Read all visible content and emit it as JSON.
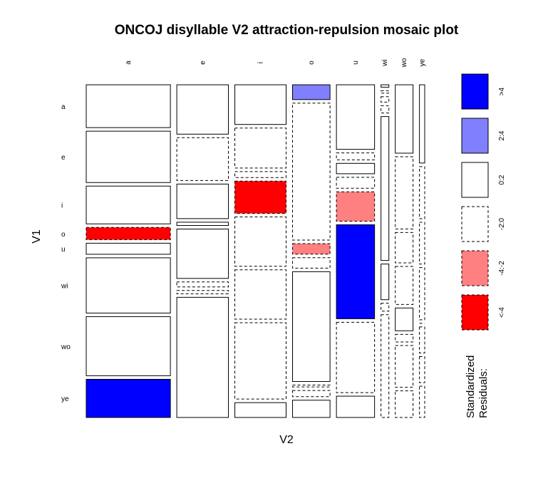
{
  "chart_data": {
    "type": "mosaic",
    "title": "ONCOJ disyllable V2 attraction-repulsion mosaic plot",
    "xlabel": "V2",
    "ylabel": "V1",
    "x_levels": [
      "a",
      "e",
      "i",
      "o",
      "u",
      "wi",
      "wo",
      "ye"
    ],
    "y_levels": [
      "a",
      "e",
      "i",
      "o",
      "u",
      "wi",
      "wo",
      "ye"
    ],
    "column_shares": [
      0.256,
      0.157,
      0.156,
      0.114,
      0.116,
      0.024,
      0.054,
      0.016
    ],
    "cells": [
      [
        {
          "p": 0.442,
          "c": 3
        },
        {
          "p": 0.03,
          "c": 3
        },
        {
          "p": 0.107,
          "c": 3
        },
        {
          "p": 0.024,
          "c": 4
        },
        {
          "p": 0.112,
          "c": 3
        },
        {
          "p": 0.004,
          "c": 3
        },
        {
          "p": 0.018,
          "c": 3
        },
        {
          "p": 0.015,
          "c": 3
        }
      ],
      [
        {
          "p": 0.53,
          "c": 3
        },
        {
          "p": 0.026,
          "c": 2
        },
        {
          "p": 0.108,
          "c": 2
        },
        {
          "p": 0.222,
          "c": 2
        },
        {
          "p": 0.012,
          "c": 2
        },
        {
          "p": 0.004,
          "c": 2
        },
        {
          "p": 0.019,
          "c": 2
        },
        {
          "p": 0.01,
          "c": 2
        }
      ],
      [
        {
          "p": 0.39,
          "c": 3
        },
        {
          "p": 0.021,
          "c": 3
        },
        {
          "p": 0.016,
          "c": 2
        },
        {
          "p": 0.017,
          "c": 1
        },
        {
          "p": 0.018,
          "c": 3
        },
        {
          "p": 0.009,
          "c": 2
        },
        {
          "p": 0.008,
          "c": 2
        },
        {
          "p": 0.008,
          "c": 2
        }
      ],
      [
        {
          "p": 0.126,
          "c": 0
        },
        {
          "p": 0.002,
          "c": 3
        },
        {
          "p": 0.087,
          "c": 0
        },
        {
          "p": 0.017,
          "c": 2
        },
        {
          "p": 0.019,
          "c": 2
        },
        {
          "p": 0.012,
          "c": 2
        },
        {
          "p": 0.01,
          "c": 2
        },
        {
          "p": 0.01,
          "c": 2
        }
      ],
      [
        {
          "p": 0.114,
          "c": 3
        },
        {
          "p": 0.03,
          "c": 3
        },
        {
          "p": 0.133,
          "c": 2
        },
        {
          "p": 0.178,
          "c": 3
        },
        {
          "p": 0.051,
          "c": 1
        },
        {
          "p": 0.238,
          "c": 3
        },
        {
          "p": 0.006,
          "c": 3
        },
        {
          "p": 0.0,
          "c": 2
        }
      ],
      [
        {
          "p": 0.57,
          "c": 3
        },
        {
          "p": 0.003,
          "c": 2
        },
        {
          "p": 0.133,
          "c": 2
        },
        {
          "p": 0.003,
          "c": 2
        },
        {
          "p": 0.163,
          "c": 5
        },
        {
          "p": 0.059,
          "c": 3
        },
        {
          "p": 0.002,
          "c": 2
        },
        {
          "p": 0.005,
          "c": 2
        }
      ],
      [
        {
          "p": 0.61,
          "c": 3
        },
        {
          "p": 0.002,
          "c": 2
        },
        {
          "p": 0.206,
          "c": 2
        },
        {
          "p": 0.01,
          "c": 2
        },
        {
          "p": 0.122,
          "c": 2
        },
        {
          "p": 0.013,
          "c": 2
        },
        {
          "p": 0.011,
          "c": 2
        },
        {
          "p": 0.005,
          "c": 2
        }
      ],
      [
        {
          "p": 0.394,
          "c": 5
        },
        {
          "p": 0.073,
          "c": 3
        },
        {
          "p": 0.04,
          "c": 3
        },
        {
          "p": 0.028,
          "c": 3
        },
        {
          "p": 0.037,
          "c": 3
        },
        {
          "p": 0.17,
          "c": 2
        },
        {
          "p": 0.007,
          "c": 2
        },
        {
          "p": 0.006,
          "c": 2
        }
      ]
    ],
    "legend": {
      "title": "Standardized Residuals:",
      "title_line1": "Standardized",
      "title_line2": "Residuals:",
      "entries": [
        {
          "label": ">4",
          "color": "#0000ff",
          "dashed": false
        },
        {
          "label": "2:4",
          "color": "#8080ff",
          "dashed": false
        },
        {
          "label": "0:2",
          "color": "#ffffff",
          "dashed": false
        },
        {
          "label": "-2:0",
          "color": "#ffffff",
          "dashed": true
        },
        {
          "label": "-4:-2",
          "color": "#ff8080",
          "dashed": true
        },
        {
          "label": "<-4",
          "color": "#ff0000",
          "dashed": true
        }
      ]
    },
    "shade_classes": [
      {
        "fill": "#ff0000",
        "dashed": true
      },
      {
        "fill": "#ff8080",
        "dashed": true
      },
      {
        "fill": "#ffffff",
        "dashed": true
      },
      {
        "fill": "#ffffff",
        "dashed": false
      },
      {
        "fill": "#8080ff",
        "dashed": false
      },
      {
        "fill": "#0000ff",
        "dashed": false
      }
    ]
  }
}
